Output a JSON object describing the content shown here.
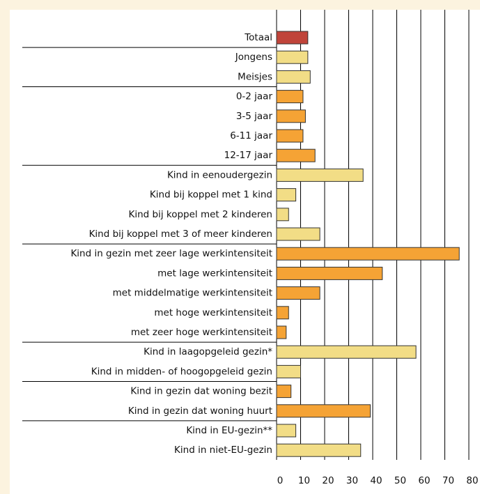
{
  "chart_data": {
    "type": "bar",
    "orientation": "horizontal",
    "categories": [
      "Totaal",
      "Jongens",
      "Meisjes",
      "0-2 jaar",
      "3-5 jaar",
      "6-11 jaar",
      "12-17 jaar",
      "Kind in eenoudergezin",
      "Kind bij koppel met 1 kind",
      "Kind bij koppel met 2 kinderen",
      "Kind bij koppel met 3 of meer kinderen",
      "Kind in gezin met zeer lage werkintensiteit",
      "met lage werkintensiteit",
      "met middelmatige werkintensiteit",
      "met hoge werkintensiteit",
      "met zeer hoge werkintensiteit",
      "Kind in laagopgeleid gezin*",
      "Kind in midden- of hoogopgeleid gezin",
      "Kind in gezin dat woning bezit",
      "Kind in gezin dat woning huurt",
      "Kind in EU-gezin**",
      "Kind in niet-EU-gezin"
    ],
    "values": [
      13,
      13,
      14,
      11,
      12,
      11,
      16,
      36,
      8,
      5,
      18,
      76,
      44,
      18,
      5,
      4,
      58,
      10,
      6,
      39,
      8,
      35
    ],
    "colors": [
      "#c0443a",
      "#f2dd86",
      "#f2dd86",
      "#f5a335",
      "#f5a335",
      "#f5a335",
      "#f5a335",
      "#f2dd86",
      "#f2dd86",
      "#f2dd86",
      "#f2dd86",
      "#f5a335",
      "#f5a335",
      "#f5a335",
      "#f5a335",
      "#f5a335",
      "#f2dd86",
      "#f2dd86",
      "#f5a335",
      "#f5a335",
      "#f2dd86",
      "#f2dd86"
    ],
    "xlim": [
      0,
      80
    ],
    "xticks": [
      0,
      10,
      20,
      30,
      40,
      50,
      60,
      70,
      80
    ],
    "grid": true
  }
}
